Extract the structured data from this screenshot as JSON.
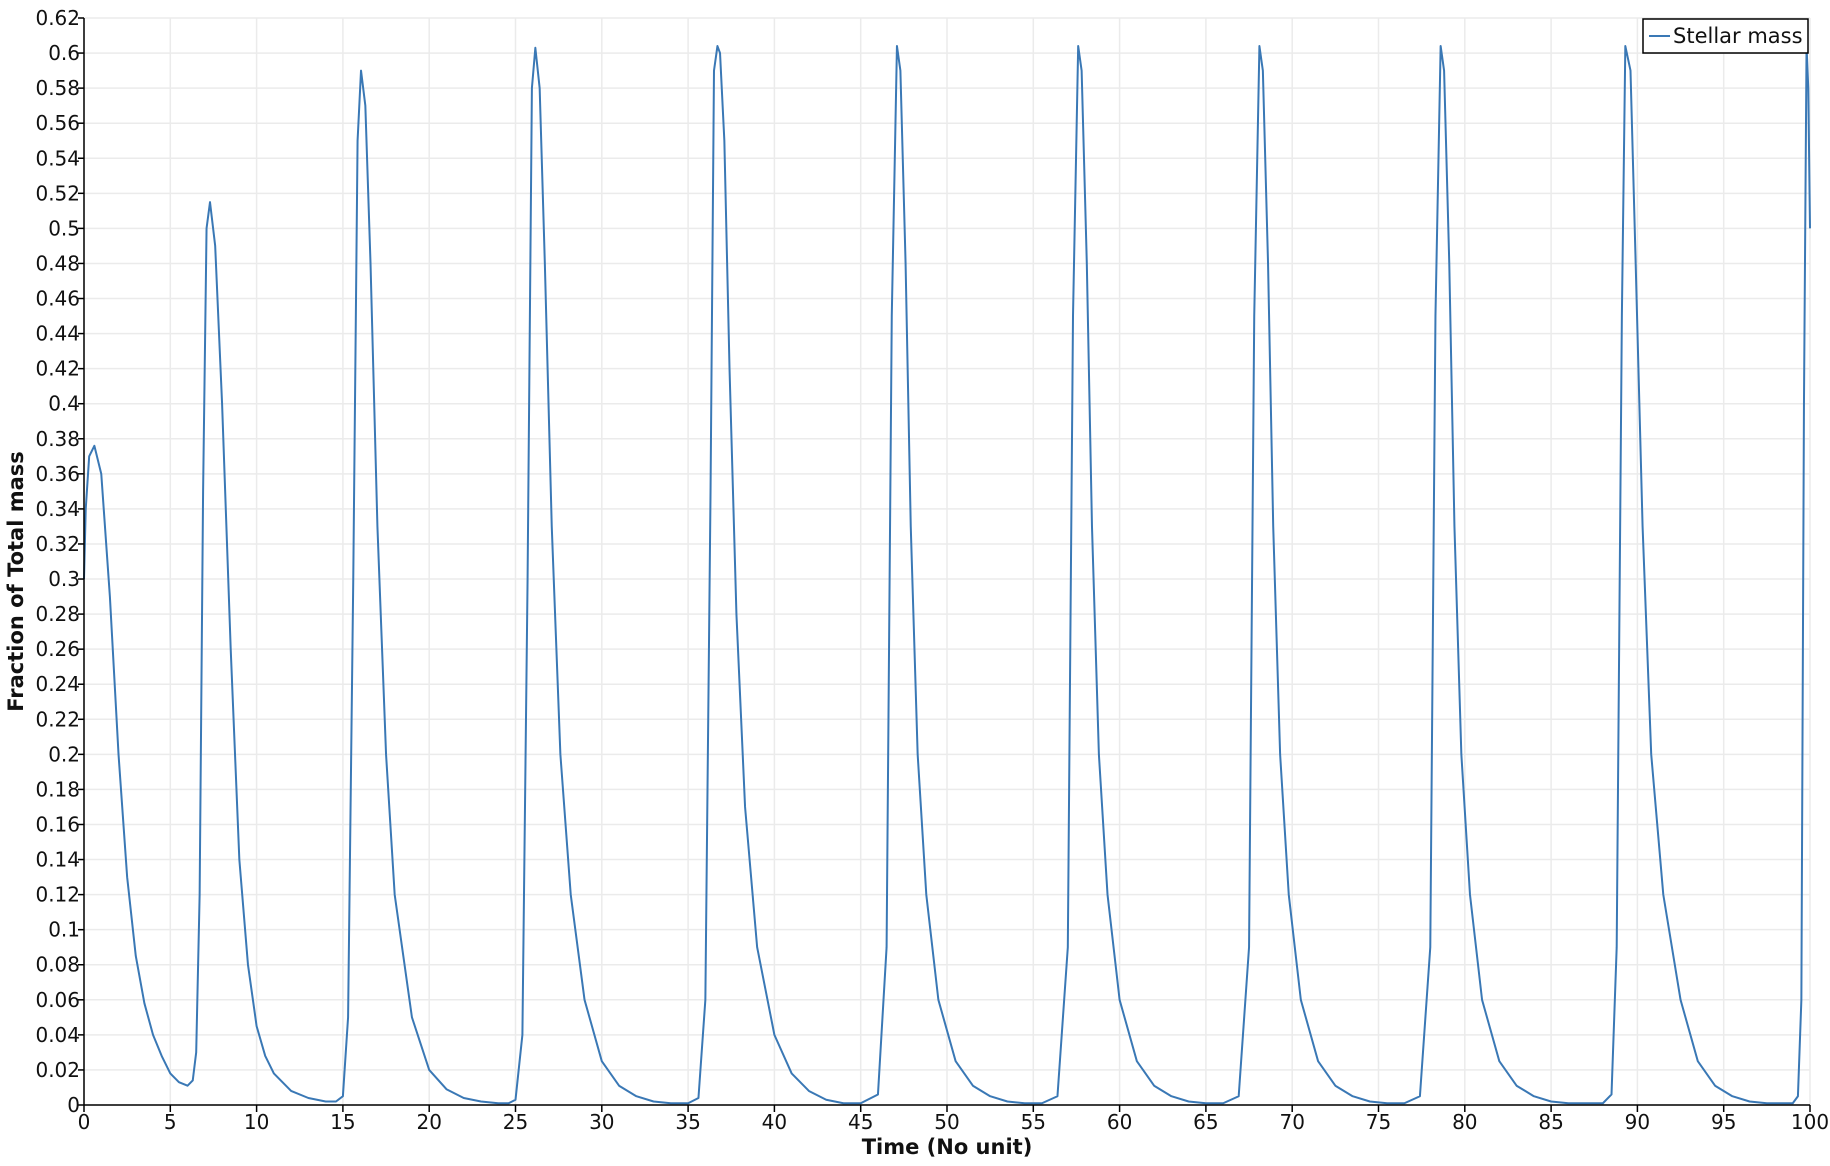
{
  "chart_data": {
    "type": "line",
    "title": "",
    "xlabel": "Time (No unit)",
    "ylabel": "Fraction of Total mass",
    "xlim": [
      0,
      100
    ],
    "ylim": [
      0,
      0.62
    ],
    "x_ticks": [
      "0",
      "5",
      "10",
      "15",
      "20",
      "25",
      "30",
      "35",
      "40",
      "45",
      "50",
      "55",
      "60",
      "65",
      "70",
      "75",
      "80",
      "85",
      "90",
      "95",
      "100"
    ],
    "y_ticks": [
      "0",
      "0.02",
      "0.04",
      "0.06",
      "0.08",
      "0.1",
      "0.12",
      "0.14",
      "0.16",
      "0.18",
      "0.2",
      "0.22",
      "0.24",
      "0.26",
      "0.28",
      "0.3",
      "0.32",
      "0.34",
      "0.36",
      "0.38",
      "0.4",
      "0.42",
      "0.44",
      "0.46",
      "0.48",
      "0.5",
      "0.52",
      "0.54",
      "0.56",
      "0.58",
      "0.6",
      "0.62"
    ],
    "grid": true,
    "legend_position": "top-right",
    "series": [
      {
        "name": "Stellar mass",
        "color": "#3a78b5",
        "x": [
          0,
          0.1,
          0.3,
          0.6,
          1.0,
          1.5,
          2.0,
          2.5,
          3.0,
          3.5,
          4.0,
          4.5,
          5.0,
          5.5,
          6.0,
          6.3,
          6.5,
          6.7,
          6.9,
          7.1,
          7.3,
          7.6,
          8.0,
          8.5,
          9.0,
          9.5,
          10.0,
          10.5,
          11.0,
          12.0,
          13.0,
          14.0,
          14.6,
          15.0,
          15.3,
          15.6,
          15.85,
          16.05,
          16.3,
          16.6,
          17.0,
          17.5,
          18.0,
          19.0,
          20.0,
          21.0,
          22.0,
          23.0,
          24.0,
          24.6,
          25.0,
          25.4,
          25.7,
          25.95,
          26.15,
          26.4,
          26.7,
          27.1,
          27.6,
          28.2,
          29.0,
          30.0,
          31.0,
          32.0,
          33.0,
          34.0,
          35.0,
          35.6,
          36.0,
          36.3,
          36.5,
          36.7,
          36.85,
          37.1,
          37.4,
          37.8,
          38.3,
          39.0,
          40.0,
          41.0,
          42.0,
          43.0,
          44.0,
          45.0,
          46.0,
          46.5,
          46.8,
          47.1,
          47.3,
          47.6,
          47.9,
          48.3,
          48.8,
          49.5,
          50.5,
          51.5,
          52.5,
          53.5,
          54.5,
          55.5,
          56.4,
          57.0,
          57.3,
          57.6,
          57.8,
          58.1,
          58.4,
          58.8,
          59.3,
          60.0,
          61.0,
          62.0,
          63.0,
          64.0,
          65.0,
          66.0,
          66.9,
          67.5,
          67.8,
          68.1,
          68.3,
          68.6,
          68.9,
          69.3,
          69.8,
          70.5,
          71.5,
          72.5,
          73.5,
          74.5,
          75.5,
          76.5,
          77.4,
          78.0,
          78.3,
          78.6,
          78.8,
          79.1,
          79.4,
          79.8,
          80.3,
          81.0,
          82.0,
          83.0,
          84.0,
          85.0,
          86.0,
          87.0,
          88.0,
          88.5,
          88.8,
          89.1,
          89.3,
          89.6,
          89.9,
          90.3,
          90.8,
          91.5,
          92.5,
          93.5,
          94.5,
          95.5,
          96.5,
          97.5,
          98.5,
          99.0,
          99.3,
          99.5,
          99.65,
          99.8,
          99.9,
          100.0
        ],
        "y": [
          0.3,
          0.34,
          0.37,
          0.376,
          0.36,
          0.29,
          0.2,
          0.13,
          0.085,
          0.058,
          0.04,
          0.028,
          0.018,
          0.013,
          0.011,
          0.014,
          0.03,
          0.12,
          0.35,
          0.5,
          0.515,
          0.49,
          0.4,
          0.26,
          0.14,
          0.08,
          0.045,
          0.028,
          0.018,
          0.008,
          0.004,
          0.002,
          0.002,
          0.005,
          0.05,
          0.3,
          0.55,
          0.59,
          0.57,
          0.48,
          0.33,
          0.2,
          0.12,
          0.05,
          0.02,
          0.009,
          0.004,
          0.002,
          0.001,
          0.001,
          0.003,
          0.04,
          0.3,
          0.58,
          0.603,
          0.58,
          0.48,
          0.33,
          0.2,
          0.12,
          0.06,
          0.025,
          0.011,
          0.005,
          0.002,
          0.001,
          0.001,
          0.004,
          0.06,
          0.35,
          0.59,
          0.604,
          0.6,
          0.55,
          0.42,
          0.28,
          0.17,
          0.09,
          0.04,
          0.018,
          0.008,
          0.003,
          0.001,
          0.001,
          0.006,
          0.09,
          0.45,
          0.604,
          0.59,
          0.48,
          0.33,
          0.2,
          0.12,
          0.06,
          0.025,
          0.011,
          0.005,
          0.002,
          0.001,
          0.001,
          0.005,
          0.09,
          0.45,
          0.604,
          0.59,
          0.48,
          0.33,
          0.2,
          0.12,
          0.06,
          0.025,
          0.011,
          0.005,
          0.002,
          0.001,
          0.001,
          0.005,
          0.09,
          0.45,
          0.604,
          0.59,
          0.48,
          0.33,
          0.2,
          0.12,
          0.06,
          0.025,
          0.011,
          0.005,
          0.002,
          0.001,
          0.001,
          0.005,
          0.09,
          0.45,
          0.604,
          0.59,
          0.48,
          0.33,
          0.2,
          0.12,
          0.06,
          0.025,
          0.011,
          0.005,
          0.002,
          0.001,
          0.001,
          0.001,
          0.006,
          0.09,
          0.45,
          0.604,
          0.59,
          0.48,
          0.33,
          0.2,
          0.12,
          0.06,
          0.025,
          0.011,
          0.005,
          0.002,
          0.001,
          0.001,
          0.001,
          0.005,
          0.06,
          0.4,
          0.604,
          0.58,
          0.5
        ]
      }
    ]
  },
  "colors": {
    "series": "#3a78b5",
    "grid": "#ebebeb",
    "axis": "#000000",
    "background": "#ffffff"
  }
}
